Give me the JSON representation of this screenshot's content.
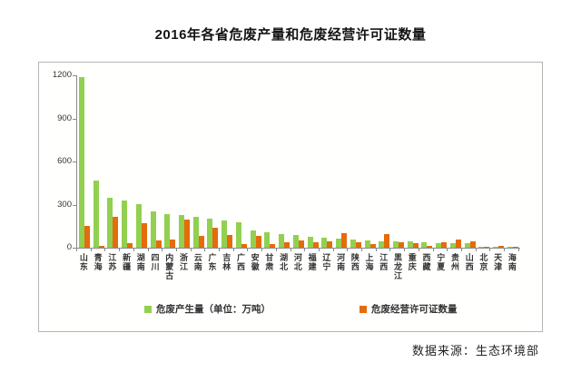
{
  "title": "2016年各省危废产量和危废经营许可证数量",
  "source": "数据来源：生态环境部",
  "colors": {
    "production": "#92D050",
    "licenses": "#E46C0A",
    "axis": "#8a8a8a"
  },
  "legend": {
    "production": "危废产生量（单位：万吨）",
    "licenses": "危废经营许可证数量"
  },
  "chart_data": {
    "type": "bar",
    "title": "2016年各省危废产量和危废经营许可证数量",
    "categories": [
      "山东",
      "青海",
      "江苏",
      "新疆",
      "湖南",
      "四川",
      "内蒙古",
      "浙江",
      "云南",
      "广东",
      "吉林",
      "广西",
      "安徽",
      "甘肃",
      "湖北",
      "河北",
      "福建",
      "辽宁",
      "河南",
      "陕西",
      "上海",
      "江西",
      "黑龙江",
      "重庆",
      "西藏",
      "宁夏",
      "贵州",
      "山西",
      "北京",
      "天津",
      "海南"
    ],
    "series": [
      {
        "name": "危废产生量（单位：万吨）",
        "color": "#92D050",
        "values": [
          1190,
          465,
          345,
          330,
          305,
          250,
          235,
          228,
          215,
          200,
          190,
          175,
          122,
          105,
          95,
          90,
          78,
          72,
          62,
          57,
          50,
          46,
          44,
          42,
          38,
          34,
          33,
          30,
          8,
          6,
          9
        ]
      },
      {
        "name": "危废经营许可证数量",
        "color": "#E46C0A",
        "values": [
          150,
          15,
          215,
          32,
          170,
          50,
          57,
          198,
          82,
          140,
          88,
          28,
          85,
          27,
          40,
          52,
          35,
          45,
          100,
          40,
          28,
          92,
          38,
          34,
          13,
          38,
          55,
          45,
          5,
          10,
          5
        ]
      }
    ],
    "xlabel": "",
    "ylabel": "",
    "ylim": [
      0,
      1200
    ],
    "yticks": [
      0,
      300,
      600,
      900,
      1200
    ],
    "grid": false,
    "legend_position": "bottom",
    "footnote": "数据来源：生态环境部"
  }
}
